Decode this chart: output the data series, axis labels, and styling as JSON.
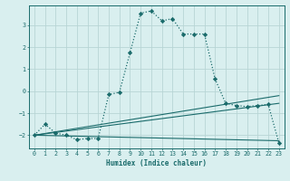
{
  "title": "",
  "xlabel": "Humidex (Indice chaleur)",
  "xlim": [
    -0.5,
    23.5
  ],
  "ylim": [
    -2.6,
    3.9
  ],
  "yticks": [
    -2,
    -1,
    0,
    1,
    2,
    3
  ],
  "xticks": [
    0,
    1,
    2,
    3,
    4,
    5,
    6,
    7,
    8,
    9,
    10,
    11,
    12,
    13,
    14,
    15,
    16,
    17,
    18,
    19,
    20,
    21,
    22,
    23
  ],
  "bg_color": "#d9efef",
  "grid_color": "#b8d5d5",
  "line_color": "#1a6b6b",
  "main_curve": {
    "x": [
      0,
      1,
      2,
      3,
      4,
      5,
      6,
      7,
      8,
      9,
      10,
      11,
      12,
      13,
      14,
      15,
      16,
      17,
      18,
      19,
      20,
      21,
      22,
      23
    ],
    "y": [
      -2.0,
      -1.5,
      -1.9,
      -2.0,
      -2.2,
      -2.15,
      -2.15,
      -0.15,
      -0.05,
      1.75,
      3.55,
      3.65,
      3.2,
      3.3,
      2.6,
      2.6,
      2.6,
      0.55,
      -0.55,
      -0.65,
      -0.7,
      -0.65,
      -0.6,
      -2.35
    ]
  },
  "line_flat": {
    "x": [
      0,
      23
    ],
    "y": [
      -2.0,
      -2.25
    ]
  },
  "line_mid": {
    "x": [
      0,
      23
    ],
    "y": [
      -2.0,
      -0.55
    ]
  },
  "line_upper": {
    "x": [
      0,
      23
    ],
    "y": [
      -2.0,
      -0.2
    ]
  }
}
